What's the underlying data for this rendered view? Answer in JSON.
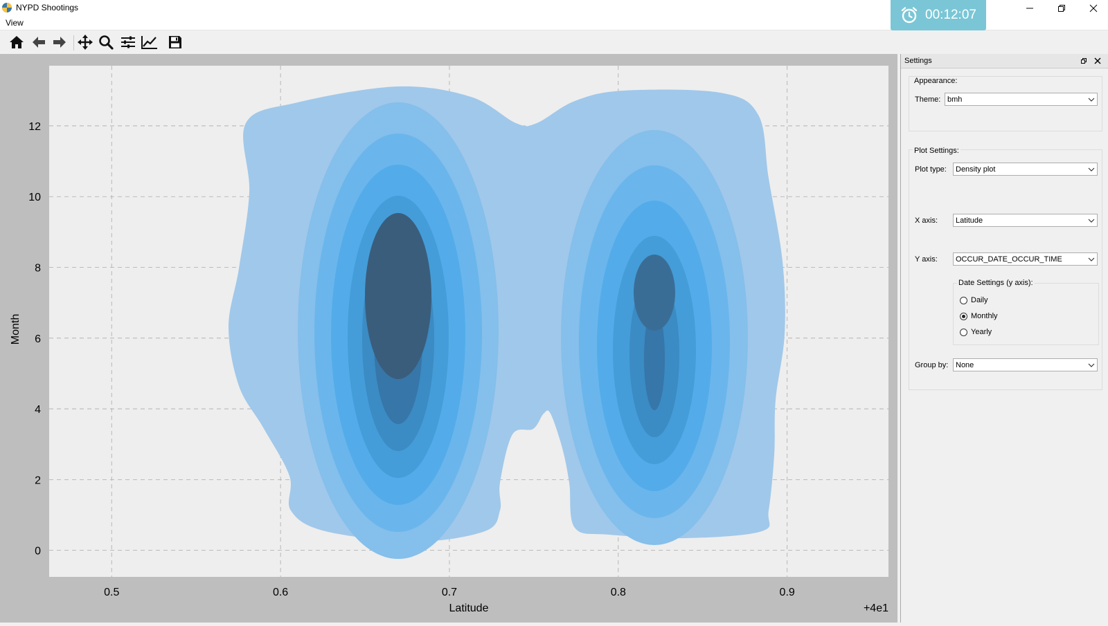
{
  "window": {
    "title": "NYPD Shootings"
  },
  "timer": {
    "text": "00:12:07"
  },
  "menu": {
    "items": [
      "View"
    ]
  },
  "toolbar": {
    "buttons": [
      "home-icon",
      "back-arrow-icon",
      "forward-arrow-icon",
      "pan-icon",
      "zoom-icon",
      "subplots-config-icon",
      "edit-axis-icon",
      "save-icon"
    ]
  },
  "chart_data": {
    "type": "density",
    "xlabel": "Latitude",
    "ylabel": "Month",
    "x_ticks": [
      0.5,
      0.6,
      0.7,
      0.8,
      0.9
    ],
    "y_ticks": [
      0,
      2,
      4,
      6,
      8,
      10,
      12
    ],
    "x_offset_label": "+4e1",
    "xlim": [
      0.463,
      0.96
    ],
    "ylim": [
      -0.75,
      13.7
    ],
    "grid": true,
    "fill_color": "#348abd",
    "peaks": [
      {
        "x": 0.676,
        "y": 7.3
      },
      {
        "x": 0.828,
        "y": 7.2
      }
    ]
  },
  "settings": {
    "title": "Settings",
    "appearance": {
      "group_label": "Appearance:",
      "theme_label": "Theme:",
      "theme_value": "bmh"
    },
    "plot": {
      "group_label": "Plot Settings:",
      "plot_type_label": "Plot type:",
      "plot_type_value": "Density plot",
      "x_axis_label": "X axis:",
      "x_axis_value": "Latitude",
      "y_axis_label": "Y axis:",
      "y_axis_value": "OCCUR_DATE_OCCUR_TIME",
      "date_group_label": "Date Settings (y axis):",
      "date_options": [
        "Daily",
        "Monthly",
        "Yearly"
      ],
      "date_selected": "Monthly",
      "group_by_label": "Group by:",
      "group_by_value": "None"
    }
  }
}
